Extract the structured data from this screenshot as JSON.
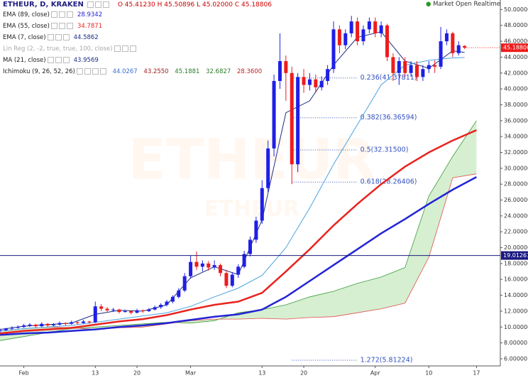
{
  "chart_data": {
    "type": "candlestick",
    "title": "ETHEUR, D, KRAKEN",
    "ohlc_readout": [
      "O",
      "45.41230",
      "H",
      "45.50896",
      "L",
      "45.02000",
      "C",
      "45.18806"
    ],
    "status": "Market Open",
    "status2": "Realtime",
    "watermark": "ETHEUR",
    "up_color": "#1f1fe6",
    "down_color": "#ee1c1c",
    "xlim": [
      -4,
      80
    ],
    "ylim": [
      5.1,
      51.2
    ],
    "xticks": [
      {
        "value": 0,
        "label": "Feb"
      },
      {
        "value": 12,
        "label": "13"
      },
      {
        "value": 19,
        "label": "20"
      },
      {
        "value": 28,
        "label": "Mar"
      },
      {
        "value": 40,
        "label": "13"
      },
      {
        "value": 47,
        "label": "20"
      },
      {
        "value": 59,
        "label": "Apr"
      },
      {
        "value": 68,
        "label": "10"
      },
      {
        "value": 76,
        "label": "17"
      }
    ],
    "yticks": [
      {
        "value": 6,
        "label": "6.00000"
      },
      {
        "value": 8,
        "label": "8.00000"
      },
      {
        "value": 10,
        "label": "10.00000"
      },
      {
        "value": 12,
        "label": "12.00000"
      },
      {
        "value": 14,
        "label": "14.00000"
      },
      {
        "value": 16,
        "label": "16.00000"
      },
      {
        "value": 18,
        "label": "18.00000"
      },
      {
        "value": 20,
        "label": "20.00000"
      },
      {
        "value": 22,
        "label": "22.00000"
      },
      {
        "value": 24,
        "label": "24.00000"
      },
      {
        "value": 26,
        "label": "26.00000"
      },
      {
        "value": 28,
        "label": "28.00000"
      },
      {
        "value": 30,
        "label": "30.00000"
      },
      {
        "value": 32,
        "label": "32.00000"
      },
      {
        "value": 34,
        "label": "34.00000"
      },
      {
        "value": 36,
        "label": "36.00000"
      },
      {
        "value": 38,
        "label": "38.00000"
      },
      {
        "value": 40,
        "label": "40.00000"
      },
      {
        "value": 42,
        "label": "42.00000"
      },
      {
        "value": 44,
        "label": "44.00000"
      },
      {
        "value": 46,
        "label": "46.00000"
      },
      {
        "value": 48,
        "label": "48.00000"
      },
      {
        "value": 50,
        "label": "50.00000"
      }
    ],
    "x": [
      -4,
      -3,
      -2,
      -1,
      0,
      1,
      2,
      3,
      4,
      5,
      6,
      7,
      8,
      9,
      10,
      11,
      12,
      13,
      14,
      15,
      16,
      17,
      18,
      19,
      20,
      21,
      22,
      23,
      24,
      25,
      26,
      27,
      28,
      29,
      30,
      31,
      32,
      33,
      34,
      35,
      36,
      37,
      38,
      39,
      40,
      41,
      42,
      43,
      44,
      45,
      46,
      47,
      48,
      49,
      50,
      51,
      52,
      53,
      54,
      55,
      56,
      57,
      58,
      59,
      60,
      61,
      62,
      63,
      64,
      65,
      66,
      67,
      68,
      69,
      70,
      71,
      72,
      73,
      74
    ],
    "ohlc": [
      [
        9.5,
        9.8,
        9.3,
        9.6
      ],
      [
        9.6,
        9.9,
        9.5,
        9.8
      ],
      [
        9.8,
        10.1,
        9.6,
        9.9
      ],
      [
        9.9,
        10.2,
        9.8,
        10.0
      ],
      [
        10.0,
        10.4,
        9.9,
        10.2
      ],
      [
        10.2,
        10.5,
        10.0,
        10.3
      ],
      [
        10.3,
        10.4,
        9.9,
        10.1
      ],
      [
        10.1,
        10.6,
        10.0,
        10.4
      ],
      [
        10.4,
        10.5,
        10.0,
        10.2
      ],
      [
        10.2,
        10.5,
        10.1,
        10.3
      ],
      [
        10.3,
        10.7,
        10.2,
        10.5
      ],
      [
        10.5,
        10.6,
        10.2,
        10.4
      ],
      [
        10.4,
        10.8,
        10.3,
        10.6
      ],
      [
        10.6,
        10.7,
        10.3,
        10.5
      ],
      [
        10.5,
        10.9,
        10.4,
        10.7
      ],
      [
        10.7,
        10.8,
        10.4,
        10.6
      ],
      [
        10.6,
        13.2,
        10.5,
        12.6
      ],
      [
        12.6,
        12.9,
        12.0,
        12.3
      ],
      [
        12.3,
        12.5,
        11.8,
        12.1
      ],
      [
        12.1,
        12.4,
        11.9,
        12.2
      ],
      [
        12.2,
        12.3,
        11.7,
        11.9
      ],
      [
        11.9,
        12.2,
        11.8,
        12.0
      ],
      [
        12.0,
        12.1,
        11.6,
        11.8
      ],
      [
        11.8,
        12.3,
        11.7,
        12.1
      ],
      [
        12.1,
        12.2,
        11.8,
        12.0
      ],
      [
        12.0,
        12.4,
        11.9,
        12.2
      ],
      [
        12.2,
        12.7,
        12.1,
        12.5
      ],
      [
        12.5,
        13.0,
        12.3,
        12.8
      ],
      [
        12.8,
        13.4,
        12.6,
        13.2
      ],
      [
        13.2,
        14.0,
        13.0,
        13.8
      ],
      [
        13.8,
        14.9,
        13.6,
        14.6
      ],
      [
        14.6,
        16.8,
        14.4,
        16.4
      ],
      [
        16.4,
        19.0,
        16.1,
        18.2
      ],
      [
        18.2,
        19.5,
        17.2,
        17.6
      ],
      [
        17.6,
        18.4,
        17.0,
        18.0
      ],
      [
        18.0,
        18.3,
        17.1,
        17.5
      ],
      [
        17.5,
        18.4,
        17.2,
        17.8
      ],
      [
        17.8,
        18.0,
        16.4,
        16.8
      ],
      [
        16.8,
        17.2,
        14.9,
        15.2
      ],
      [
        15.2,
        16.9,
        15.0,
        16.6
      ],
      [
        16.6,
        17.9,
        16.2,
        17.6
      ],
      [
        17.6,
        19.6,
        17.4,
        19.2
      ],
      [
        19.2,
        21.4,
        18.9,
        21.0
      ],
      [
        21.0,
        23.9,
        20.6,
        23.4
      ],
      [
        23.4,
        28.5,
        23.0,
        27.5
      ],
      [
        27.5,
        33.5,
        27.0,
        32.5
      ],
      [
        32.5,
        41.8,
        31.5,
        41.0
      ],
      [
        41.0,
        47.0,
        40.0,
        43.5
      ],
      [
        43.5,
        44.2,
        38.5,
        42.0
      ],
      [
        42.0,
        42.8,
        28.0,
        30.5
      ],
      [
        30.5,
        42.0,
        29.5,
        41.5
      ],
      [
        41.5,
        42.5,
        39.5,
        40.5
      ],
      [
        40.5,
        42.0,
        39.8,
        41.2
      ],
      [
        41.2,
        41.8,
        39.5,
        40.2
      ],
      [
        40.2,
        41.6,
        39.8,
        41.0
      ],
      [
        41.0,
        43.0,
        40.5,
        42.5
      ],
      [
        42.5,
        48.5,
        42.0,
        47.5
      ],
      [
        47.5,
        48.0,
        44.5,
        45.5
      ],
      [
        45.5,
        47.5,
        45.0,
        47.0
      ],
      [
        47.0,
        49.2,
        46.5,
        48.5
      ],
      [
        48.5,
        49.0,
        45.5,
        46.0
      ],
      [
        46.0,
        48.0,
        45.5,
        47.5
      ],
      [
        47.5,
        49.0,
        47.0,
        48.5
      ],
      [
        48.5,
        49.0,
        46.5,
        47.0
      ],
      [
        47.0,
        48.5,
        46.5,
        48.0
      ],
      [
        48.0,
        48.2,
        43.5,
        44.0
      ],
      [
        44.0,
        44.5,
        41.0,
        42.0
      ],
      [
        42.0,
        44.0,
        40.5,
        43.5
      ],
      [
        43.5,
        44.0,
        41.5,
        42.0
      ],
      [
        42.0,
        43.5,
        41.5,
        43.0
      ],
      [
        43.0,
        43.5,
        41.0,
        41.5
      ],
      [
        41.5,
        43.0,
        41.0,
        42.5
      ],
      [
        42.5,
        43.5,
        42.0,
        43.0
      ],
      [
        43.0,
        43.6,
        42.0,
        42.8
      ],
      [
        42.8,
        47.8,
        42.5,
        46.0
      ],
      [
        46.0,
        47.5,
        45.5,
        47.0
      ],
      [
        47.0,
        47.2,
        44.0,
        44.5
      ],
      [
        44.5,
        46.0,
        44.2,
        45.5
      ],
      [
        45.4123,
        45.50896,
        45.02,
        45.18806
      ]
    ],
    "series": [
      {
        "name": "EMA (89, close)",
        "readout": "28.9342",
        "color": "#2323d6",
        "line_width": 2.5,
        "x": [
          -4,
          0,
          4,
          8,
          12,
          16,
          20,
          24,
          28,
          32,
          36,
          40,
          44,
          48,
          52,
          56,
          60,
          64,
          68,
          72,
          76
        ],
        "values": [
          9.0,
          9.2,
          9.3,
          9.5,
          9.7,
          10.0,
          10.2,
          10.5,
          10.9,
          11.3,
          11.6,
          12.2,
          13.8,
          15.8,
          17.8,
          19.8,
          21.8,
          23.6,
          25.5,
          27.3,
          28.9
        ]
      },
      {
        "name": "EMA (55, close)",
        "readout": "34.7871",
        "color": "#e8231f",
        "line_width": 2.5,
        "x": [
          -4,
          0,
          4,
          8,
          12,
          16,
          20,
          24,
          28,
          32,
          36,
          40,
          44,
          48,
          52,
          56,
          60,
          64,
          68,
          72,
          76
        ],
        "values": [
          9.2,
          9.5,
          9.7,
          9.9,
          10.3,
          10.7,
          11.0,
          11.5,
          12.2,
          12.8,
          13.2,
          14.3,
          17.0,
          19.8,
          22.8,
          25.5,
          28.0,
          30.2,
          32.0,
          33.5,
          34.8
        ]
      },
      {
        "name": "EMA (7, close)",
        "readout": "44.5862",
        "color": "#1c2c80",
        "line_width": 1,
        "x": [
          -4,
          0,
          4,
          8,
          12,
          16,
          20,
          24,
          28,
          32,
          36,
          40,
          44,
          48,
          52,
          56,
          60,
          64,
          68,
          72,
          74
        ],
        "values": [
          9.7,
          10.1,
          10.3,
          10.5,
          11.6,
          12.1,
          12.0,
          12.8,
          16.2,
          17.6,
          16.6,
          23.5,
          37,
          38.5,
          43,
          46.5,
          47.2,
          43.5,
          42.6,
          44.8,
          44.59
        ]
      },
      {
        "name": "MA (21, close)",
        "readout": "43.9569",
        "color": "#4aa3df",
        "line_width": 1,
        "x": [
          -4,
          0,
          4,
          8,
          12,
          16,
          20,
          24,
          28,
          32,
          36,
          40,
          44,
          48,
          52,
          56,
          60,
          64,
          68,
          72,
          74
        ],
        "values": [
          9.5,
          9.8,
          10.0,
          10.2,
          10.6,
          11.0,
          11.4,
          11.8,
          12.6,
          13.8,
          14.9,
          16.5,
          20,
          25,
          30.5,
          35.5,
          40.5,
          43.0,
          43.6,
          43.9,
          43.96
        ]
      }
    ],
    "linreg_name": "Lin Reg (2, -2, true, true, 100, close)",
    "cloud": {
      "name": "Ichimoku (9, 26, 52, 26)",
      "readout": [
        "44.0267",
        "43.2550",
        "45.1881",
        "32.6827",
        "28.3600"
      ],
      "fill": "#d6efd0",
      "color_a": "#3a9a3a",
      "color_b": "#e05050",
      "x": [
        -4,
        0,
        4,
        8,
        12,
        16,
        20,
        24,
        28,
        32,
        36,
        40,
        44,
        48,
        52,
        56,
        60,
        64,
        68,
        72,
        76
      ],
      "span_a": [
        8.3,
        8.8,
        9.3,
        9.8,
        10.0,
        10.2,
        10.4,
        10.6,
        10.5,
        10.8,
        11.8,
        12.2,
        12.8,
        13.8,
        14.5,
        15.5,
        16.3,
        17.5,
        26.5,
        31.5,
        36
      ],
      "span_b": [
        9.5,
        9.8,
        10.0,
        9.9,
        9.7,
        9.9,
        10.0,
        10.4,
        10.8,
        11.0,
        11.0,
        11.1,
        11.0,
        11.2,
        11.3,
        11.8,
        12.3,
        13.0,
        18.8,
        28.8,
        29.3
      ]
    },
    "fib": {
      "x": [
        45,
        56
      ],
      "color": "#3050c0",
      "levels": [
        {
          "value": 41.37811,
          "label": "0.236(41.37811)"
        },
        {
          "value": 36.36594,
          "label": "0.382(36.36594)"
        },
        {
          "value": 32.315,
          "label": "0.5(32.31500)"
        },
        {
          "value": 28.26406,
          "label": "0.618(28.26406)"
        },
        {
          "value": 5.81224,
          "label": "1.272(5.81224)"
        }
      ]
    },
    "hline": {
      "value": 19.01261,
      "color": "#1a1a80"
    },
    "last_price": {
      "value": 45.18806,
      "color": "#ee1c1c"
    }
  }
}
